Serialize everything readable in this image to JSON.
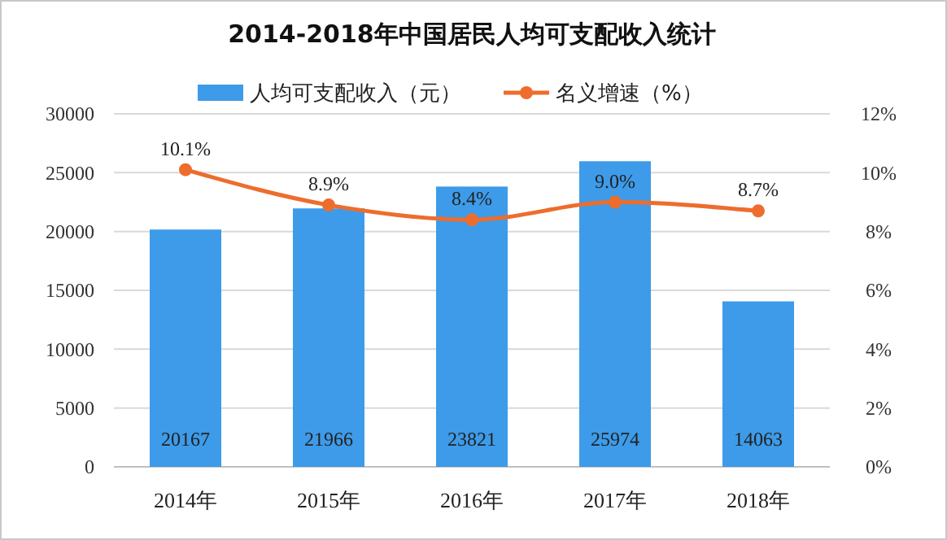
{
  "chart_data": {
    "type": "bar",
    "title": "2014-2018年中国居民人均可支配收入统计",
    "categories": [
      "2014年",
      "2015年",
      "2016年",
      "2017年",
      "2018年"
    ],
    "series": [
      {
        "name": "人均可支配收入（元）",
        "color": "#3d9be9",
        "values": [
          20167,
          21966,
          23821,
          25974,
          14063
        ],
        "value_labels": [
          "20167",
          "21966",
          "23821",
          "25974",
          "14063"
        ]
      },
      {
        "name": "名义增速（%）",
        "type": "line",
        "axis": "y2",
        "color": "#ed6d2d",
        "marker": "circle",
        "values": [
          10.1,
          8.9,
          8.4,
          9.0,
          8.7
        ],
        "value_labels": [
          "10.1%",
          "8.9%",
          "8.4%",
          "9.0%",
          "8.7%"
        ]
      }
    ],
    "ylim": [
      0,
      30000
    ],
    "yticks": [
      0,
      5000,
      10000,
      15000,
      20000,
      25000,
      30000
    ],
    "y2lim": [
      0,
      12
    ],
    "y2ticks": [
      {
        "value": 0,
        "label": "0%"
      },
      {
        "value": 2,
        "label": "2%"
      },
      {
        "value": 4,
        "label": "4%"
      },
      {
        "value": 6,
        "label": "6%"
      },
      {
        "value": 8,
        "label": "8%"
      },
      {
        "value": 10,
        "label": "10%"
      },
      {
        "value": 12,
        "label": "12%"
      }
    ],
    "grid": "y",
    "legend": "top"
  }
}
